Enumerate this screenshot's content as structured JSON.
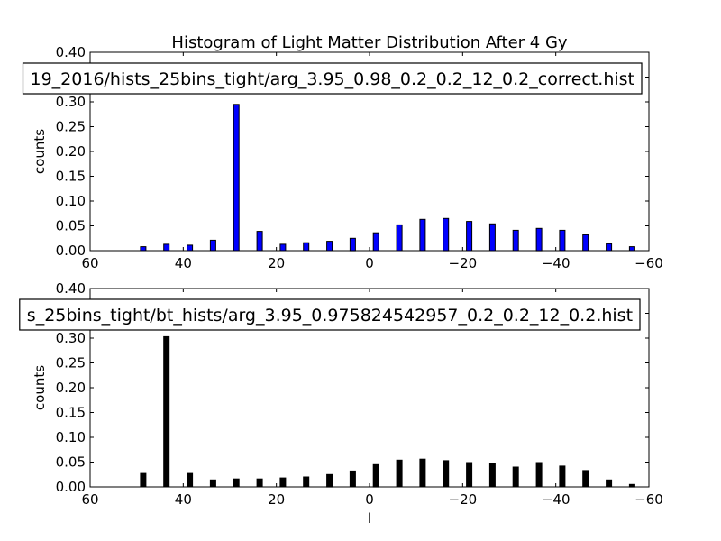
{
  "figure": {
    "title": "Histogram of Light Matter Distribution After 4 Gy"
  },
  "chart_data": [
    {
      "type": "bar",
      "title": "Histogram of Light Matter Distribution After 4 Gy",
      "legend_label": "19_2016/hists_25bins_tight/arg_3.95_0.98_0.2_0.2_12_0.2_correct.hist",
      "xlabel": "",
      "ylabel": "counts",
      "xlim": [
        60,
        -60
      ],
      "ylim": [
        0,
        0.4
      ],
      "xticks": [
        60,
        40,
        20,
        0,
        -20,
        -40,
        -60
      ],
      "xtick_labels": [
        "60",
        "40",
        "20",
        "0",
        "−20",
        "−40",
        "−60"
      ],
      "yticks": [
        0,
        0.05,
        0.1,
        0.15,
        0.2,
        0.25,
        0.3,
        0.35,
        0.4
      ],
      "ytick_labels": [
        "0.00",
        "0.05",
        "0.10",
        "0.15",
        "0.20",
        "0.25",
        "0.30",
        "0.35",
        "0.40"
      ],
      "color": "#0000ff",
      "grid": false,
      "x": [
        48.6,
        43.6,
        38.6,
        33.6,
        28.6,
        23.6,
        18.6,
        13.6,
        8.6,
        3.6,
        -1.4,
        -6.4,
        -11.4,
        -16.4,
        -21.4,
        -26.4,
        -31.4,
        -36.4,
        -41.4,
        -46.4,
        -51.4,
        -56.4
      ],
      "values": [
        0.008,
        0.013,
        0.011,
        0.021,
        0.295,
        0.039,
        0.013,
        0.016,
        0.019,
        0.025,
        0.036,
        0.052,
        0.063,
        0.065,
        0.059,
        0.054,
        0.041,
        0.045,
        0.041,
        0.032,
        0.014,
        0.008
      ]
    },
    {
      "type": "bar",
      "title": "",
      "legend_label": "s_25bins_tight/bt_hists/arg_3.95_0.975824542957_0.2_0.2_12_0.2.hist",
      "xlabel": "l",
      "ylabel": "counts",
      "xlim": [
        60,
        -60
      ],
      "ylim": [
        0,
        0.4
      ],
      "xticks": [
        60,
        40,
        20,
        0,
        -20,
        -40,
        -60
      ],
      "xtick_labels": [
        "60",
        "40",
        "20",
        "0",
        "−20",
        "−40",
        "−60"
      ],
      "yticks": [
        0,
        0.05,
        0.1,
        0.15,
        0.2,
        0.25,
        0.3,
        0.35,
        0.4
      ],
      "ytick_labels": [
        "0.00",
        "0.05",
        "0.10",
        "0.15",
        "0.20",
        "0.25",
        "0.30",
        "0.35",
        "0.40"
      ],
      "color": "#000000",
      "grid": false,
      "x": [
        48.6,
        43.6,
        38.6,
        33.6,
        28.6,
        23.6,
        18.6,
        13.6,
        8.6,
        3.6,
        -1.4,
        -6.4,
        -11.4,
        -16.4,
        -21.4,
        -26.4,
        -31.4,
        -36.4,
        -41.4,
        -46.4,
        -51.4,
        -56.4
      ],
      "values": [
        0.027,
        0.303,
        0.027,
        0.014,
        0.016,
        0.016,
        0.018,
        0.02,
        0.025,
        0.032,
        0.045,
        0.054,
        0.056,
        0.053,
        0.049,
        0.047,
        0.04,
        0.049,
        0.042,
        0.033,
        0.014,
        0.005
      ]
    }
  ]
}
